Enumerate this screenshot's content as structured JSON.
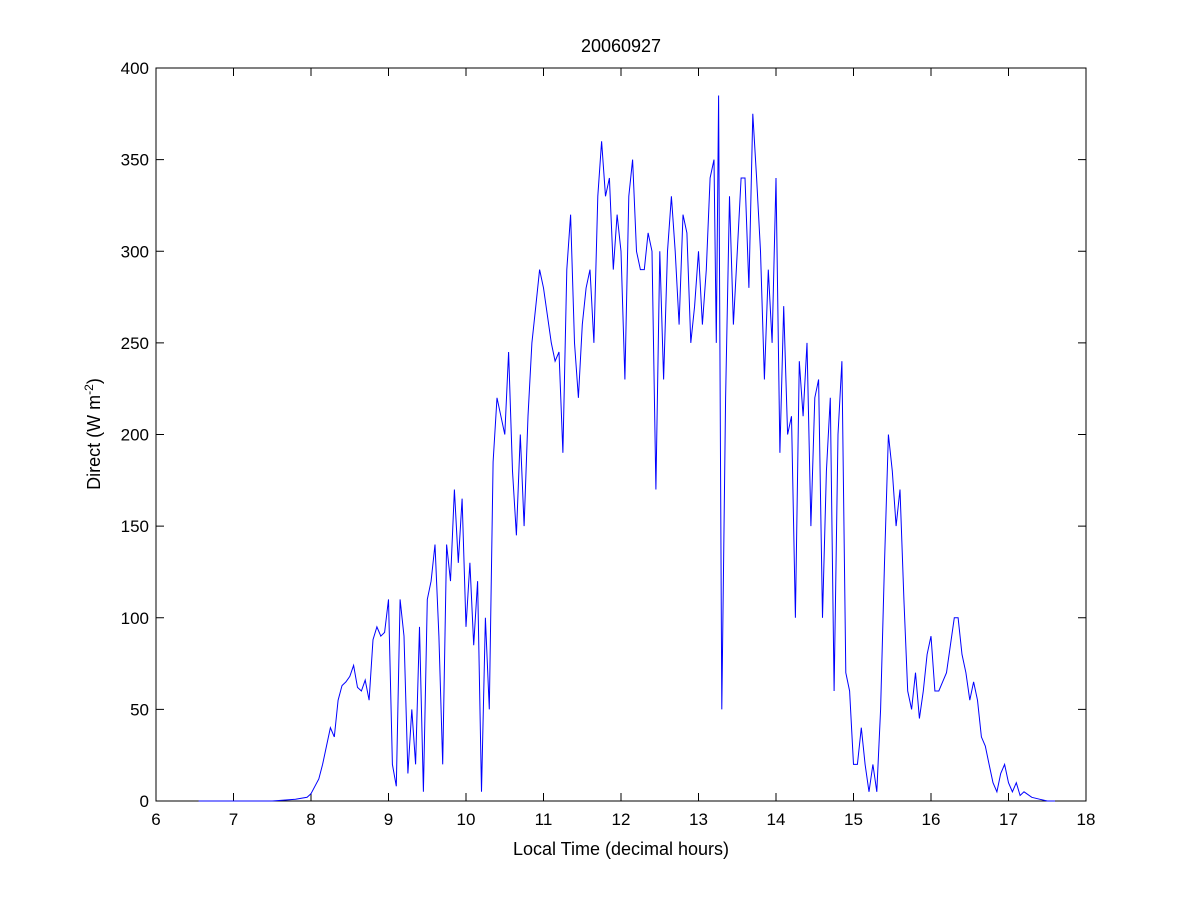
{
  "chart_data": {
    "type": "line",
    "title": "20060927",
    "xlabel": "Local Time (decimal hours)",
    "ylabel_main": "Direct (W m",
    "ylabel_sup": "-2",
    "ylabel_close": ")",
    "xlim": [
      6,
      18
    ],
    "ylim": [
      0,
      400
    ],
    "xticks": [
      6,
      7,
      8,
      9,
      10,
      11,
      12,
      13,
      14,
      15,
      16,
      17,
      18
    ],
    "yticks": [
      0,
      50,
      100,
      150,
      200,
      250,
      300,
      350,
      400
    ],
    "grid": false,
    "line_color": "#0000ff",
    "series": [
      {
        "x": [
          6.55,
          7.0,
          7.5,
          7.8,
          7.95,
          8.0,
          8.05,
          8.1,
          8.15,
          8.2,
          8.25,
          8.3,
          8.35,
          8.4,
          8.45,
          8.5,
          8.55,
          8.6,
          8.65,
          8.7,
          8.75,
          8.8,
          8.85,
          8.9,
          8.95,
          9.0,
          9.05,
          9.1,
          9.15,
          9.2,
          9.25,
          9.3,
          9.35,
          9.4,
          9.45,
          9.5,
          9.55,
          9.6,
          9.65,
          9.7,
          9.75,
          9.8,
          9.85,
          9.9,
          9.95,
          10.0,
          10.05,
          10.1,
          10.15,
          10.2,
          10.25,
          10.3,
          10.35,
          10.4,
          10.45,
          10.5,
          10.55,
          10.6,
          10.65,
          10.7,
          10.75,
          10.8,
          10.85,
          10.9,
          10.95,
          11.0,
          11.05,
          11.1,
          11.15,
          11.2,
          11.25,
          11.3,
          11.35,
          11.4,
          11.45,
          11.5,
          11.55,
          11.6,
          11.65,
          11.7,
          11.75,
          11.8,
          11.85,
          11.9,
          11.95,
          12.0,
          12.05,
          12.1,
          12.15,
          12.2,
          12.25,
          12.3,
          12.35,
          12.4,
          12.45,
          12.5,
          12.55,
          12.6,
          12.65,
          12.7,
          12.75,
          12.8,
          12.85,
          12.9,
          12.95,
          13.0,
          13.05,
          13.1,
          13.15,
          13.2,
          13.23,
          13.26,
          13.3,
          13.35,
          13.4,
          13.45,
          13.5,
          13.55,
          13.6,
          13.65,
          13.7,
          13.75,
          13.8,
          13.85,
          13.9,
          13.95,
          14.0,
          14.05,
          14.1,
          14.15,
          14.2,
          14.25,
          14.3,
          14.35,
          14.4,
          14.45,
          14.5,
          14.55,
          14.6,
          14.65,
          14.7,
          14.75,
          14.8,
          14.85,
          14.9,
          14.95,
          15.0,
          15.05,
          15.1,
          15.15,
          15.2,
          15.25,
          15.3,
          15.35,
          15.4,
          15.45,
          15.5,
          15.55,
          15.6,
          15.65,
          15.7,
          15.75,
          15.8,
          15.85,
          15.9,
          15.95,
          16.0,
          16.05,
          16.1,
          16.15,
          16.2,
          16.25,
          16.3,
          16.35,
          16.4,
          16.45,
          16.5,
          16.55,
          16.6,
          16.65,
          16.7,
          16.75,
          16.8,
          16.85,
          16.9,
          16.95,
          17.0,
          17.05,
          17.1,
          17.15,
          17.2,
          17.3,
          17.4,
          17.5,
          17.6
        ],
        "y": [
          0,
          0,
          0,
          1,
          2,
          4,
          8,
          12,
          20,
          30,
          40,
          35,
          55,
          63,
          65,
          68,
          74,
          62,
          60,
          66,
          55,
          88,
          95,
          90,
          92,
          110,
          20,
          8,
          110,
          90,
          15,
          50,
          20,
          95,
          5,
          110,
          120,
          140,
          90,
          20,
          140,
          120,
          170,
          130,
          165,
          95,
          130,
          85,
          120,
          5,
          100,
          50,
          185,
          220,
          210,
          200,
          245,
          180,
          145,
          200,
          150,
          210,
          250,
          270,
          290,
          280,
          265,
          250,
          240,
          245,
          190,
          290,
          320,
          250,
          220,
          260,
          280,
          290,
          250,
          330,
          360,
          330,
          340,
          290,
          320,
          300,
          230,
          330,
          350,
          300,
          290,
          290,
          310,
          300,
          170,
          300,
          230,
          300,
          330,
          300,
          260,
          320,
          310,
          250,
          270,
          300,
          260,
          290,
          340,
          350,
          250,
          385,
          50,
          220,
          330,
          260,
          300,
          340,
          340,
          280,
          375,
          340,
          300,
          230,
          290,
          250,
          340,
          190,
          270,
          200,
          210,
          100,
          240,
          210,
          250,
          150,
          220,
          230,
          100,
          180,
          220,
          60,
          200,
          240,
          70,
          60,
          20,
          20,
          40,
          20,
          5,
          20,
          5,
          50,
          130,
          200,
          180,
          150,
          170,
          110,
          60,
          50,
          70,
          45,
          60,
          80,
          90,
          60,
          60,
          65,
          70,
          85,
          100,
          100,
          80,
          70,
          55,
          65,
          55,
          35,
          30,
          20,
          10,
          5,
          15,
          20,
          10,
          5,
          10,
          3,
          5,
          2,
          1,
          0,
          0
        ]
      }
    ]
  }
}
